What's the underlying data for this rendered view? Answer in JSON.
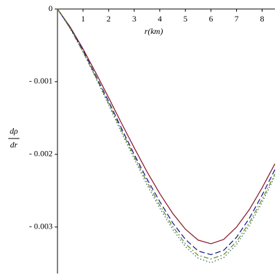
{
  "chart_data": {
    "type": "line",
    "xlabel": "r(km)",
    "ylabel_numerator": "dρ",
    "ylabel_denominator": "dr",
    "x": [
      0,
      0.5,
      1,
      1.5,
      2,
      2.5,
      3,
      3.5,
      4,
      4.5,
      5,
      5.5,
      6,
      6.5,
      7,
      7.5,
      8,
      8.5
    ],
    "series": [
      {
        "color": "#8b1a2b",
        "dash": "solid",
        "values": [
          0,
          -0.00025,
          -0.00055,
          -0.00088,
          -0.00122,
          -0.00157,
          -0.00191,
          -0.00224,
          -0.00254,
          -0.00281,
          -0.00303,
          -0.00318,
          -0.00323,
          -0.00317,
          -0.003,
          -0.00276,
          -0.00246,
          -0.00213
        ]
      },
      {
        "color": "#1c1c8e",
        "dash": "dash",
        "values": [
          0,
          -0.00026,
          -0.00057,
          -0.00092,
          -0.00127,
          -0.00164,
          -0.002,
          -0.00234,
          -0.00265,
          -0.00294,
          -0.00317,
          -0.00333,
          -0.00338,
          -0.00332,
          -0.00314,
          -0.00288,
          -0.00256,
          -0.00221
        ]
      },
      {
        "color": "#6b8e23",
        "dash": "dashdot",
        "values": [
          0,
          -0.00027,
          -0.00059,
          -0.00094,
          -0.0013,
          -0.00167,
          -0.00203,
          -0.00238,
          -0.0027,
          -0.00299,
          -0.00323,
          -0.00339,
          -0.00344,
          -0.00338,
          -0.0032,
          -0.00294,
          -0.00262,
          -0.00227
        ]
      },
      {
        "color": "#2e6b5e",
        "dash": "dot",
        "values": [
          0,
          -0.00027,
          -0.00059,
          -0.00095,
          -0.00132,
          -0.0017,
          -0.00206,
          -0.00242,
          -0.00274,
          -0.00303,
          -0.00327,
          -0.00343,
          -0.00349,
          -0.00342,
          -0.00324,
          -0.00298,
          -0.00266,
          -0.0023
        ]
      }
    ],
    "xlim": [
      0,
      8.5
    ],
    "ylim": [
      -0.00364,
      0
    ],
    "xticks": [
      1,
      2,
      3,
      4,
      5,
      6,
      7,
      8
    ],
    "yticks": [
      0,
      {
        "value": -0.001,
        "label": "- 0.001"
      },
      {
        "value": -0.002,
        "label": "- 0.002"
      },
      {
        "value": -0.003,
        "label": "- 0.003"
      }
    ]
  }
}
